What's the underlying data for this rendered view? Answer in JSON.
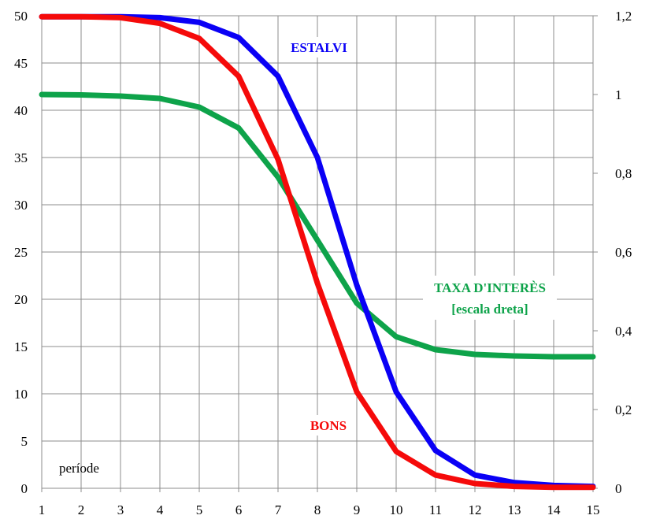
{
  "chart_data": {
    "type": "line",
    "x": [
      1,
      2,
      3,
      4,
      5,
      6,
      7,
      8,
      9,
      10,
      11,
      12,
      13,
      14,
      15
    ],
    "xlabel": "període",
    "ylim_left": [
      0,
      50
    ],
    "yticks_left": [
      "0",
      "5",
      "10",
      "15",
      "20",
      "25",
      "30",
      "35",
      "40",
      "45",
      "50"
    ],
    "ylim_right": [
      0,
      1.2
    ],
    "yticks_right": [
      "0",
      "0,2",
      "0,4",
      "0,6",
      "0,8",
      "1",
      "1,2"
    ],
    "grid": true,
    "series": [
      {
        "name": "ESTALVI",
        "axis": "left",
        "color": "#0a00f5",
        "values": [
          49.9,
          49.9,
          49.9,
          49.8,
          49.3,
          47.7,
          43.6,
          35.0,
          21.5,
          10.2,
          4.0,
          1.4,
          0.6,
          0.3,
          0.2
        ]
      },
      {
        "name": "BONS",
        "axis": "left",
        "color": "#f50a0a",
        "values": [
          49.9,
          49.9,
          49.8,
          49.2,
          47.6,
          43.6,
          34.8,
          21.7,
          10.2,
          3.9,
          1.4,
          0.5,
          0.2,
          0.1,
          0.1
        ]
      },
      {
        "name": "TAXA D'INTERÈS [escala dreta]",
        "name_line1": "TAXA D'INTERÈS",
        "name_line2": "[escala dreta]",
        "axis": "right",
        "color": "#0ea34a",
        "values": [
          1.0,
          0.999,
          0.996,
          0.99,
          0.968,
          0.915,
          0.79,
          0.63,
          0.47,
          0.385,
          0.352,
          0.34,
          0.336,
          0.334,
          0.334
        ]
      }
    ]
  }
}
